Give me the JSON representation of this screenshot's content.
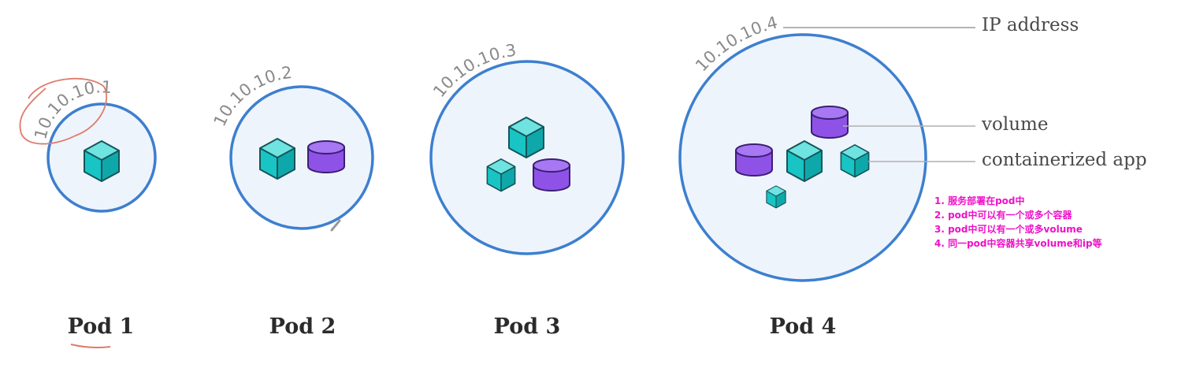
{
  "pods": [
    {
      "label": "Pod 1",
      "ip": "10.10.10.1"
    },
    {
      "label": "Pod 2",
      "ip": "10.10.10.2"
    },
    {
      "label": "Pod 3",
      "ip": "10.10.10.3"
    },
    {
      "label": "Pod 4",
      "ip": "10.10.10.4"
    }
  ],
  "legend": {
    "ip": "IP address",
    "volume": "volume",
    "app": "containerized app"
  },
  "notes": [
    "1. 服务部署在pod中",
    "2. pod中可以有一个或多个容器",
    "3. pod中可以有一个或多volume",
    "4. 同一pod中容器共享volume和ip等"
  ],
  "colors": {
    "pod_border": "#3d7fcf",
    "pod_fill": "#eef4fc",
    "container": "#19c4c4",
    "volume": "#8f52e6",
    "annotation": "#e07a6a",
    "note_text": "#ee10c8"
  }
}
